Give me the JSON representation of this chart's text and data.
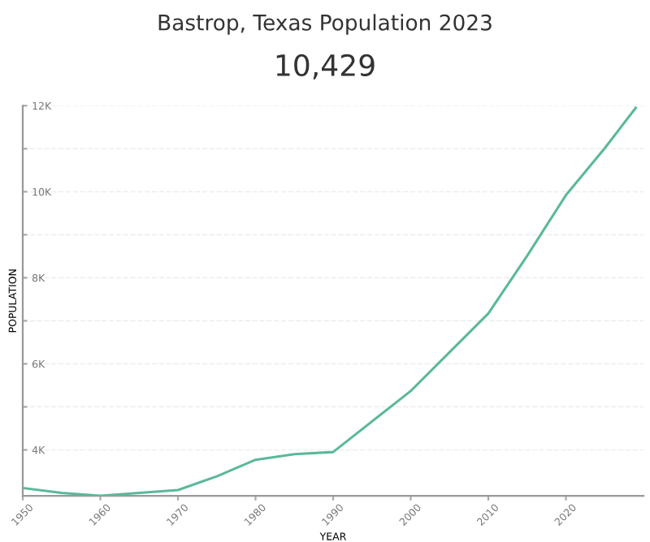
{
  "chart_data": {
    "type": "line",
    "title": "Bastrop, Texas Population 2023",
    "subtitle": "10,429",
    "xlabel": "YEAR",
    "ylabel": "POPULATION",
    "x": [
      1950,
      1955,
      1960,
      1970,
      1975,
      1980,
      1985,
      1990,
      2000,
      2005,
      2010,
      2015,
      2020,
      2025,
      2029
    ],
    "series": [
      {
        "color": "#5bb89c",
        "values": [
          3115,
          3000,
          2935,
          3065,
          3385,
          3770,
          3900,
          3950,
          5370,
          6270,
          7170,
          8510,
          9920,
          11010,
          11950
        ]
      }
    ],
    "xlim": [
      1950,
      2030
    ],
    "xticks": [
      1950,
      1960,
      1970,
      1980,
      1990,
      2000,
      2010,
      2020
    ],
    "ylim": [
      2930,
      12000
    ],
    "yticks": [
      {
        "value": 4000,
        "label": "4K"
      },
      {
        "value": 5000,
        "label": null
      },
      {
        "value": 6000,
        "label": "6K"
      },
      {
        "value": 7000,
        "label": null
      },
      {
        "value": 8000,
        "label": "8K"
      },
      {
        "value": 9000,
        "label": null
      },
      {
        "value": 10000,
        "label": "10K"
      },
      {
        "value": 11000,
        "label": null
      },
      {
        "value": 12000,
        "label": "12K"
      }
    ],
    "grid": "y",
    "marker": "none",
    "line_style": "solid",
    "legend": false
  }
}
